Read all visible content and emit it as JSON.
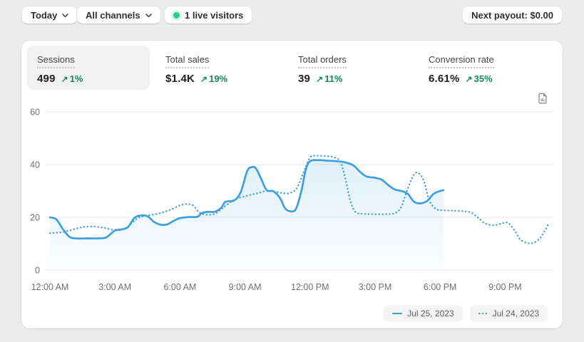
{
  "topbar": {
    "date_selector": {
      "label": "Today"
    },
    "channel_selector": {
      "label": "All channels"
    },
    "live_visitors": {
      "label": "1 live visitors"
    },
    "next_payout": {
      "label": "Next payout: $0.00"
    }
  },
  "icons": {
    "trend_up": "↗"
  },
  "colors": {
    "accent_blue": "#3da0da",
    "success_green": "#17875e",
    "live_dot_green": "#2fcf8b",
    "page_background": "#ececec",
    "card_background": "#ffffff"
  },
  "metrics": [
    {
      "label": "Sessions",
      "value": "499",
      "trend": "1%",
      "selected": true
    },
    {
      "label": "Total sales",
      "value": "$1.4K",
      "trend": "19%",
      "selected": false
    },
    {
      "label": "Total orders",
      "value": "39",
      "trend": "11%",
      "selected": false
    },
    {
      "label": "Conversion rate",
      "value": "6.61%",
      "trend": "35%",
      "selected": false
    }
  ],
  "legend": [
    {
      "label": "Jul 25, 2023",
      "style": "solid"
    },
    {
      "label": "Jul 24, 2023",
      "style": "dotted"
    }
  ],
  "chart_data": {
    "type": "line",
    "ylim": [
      0,
      60
    ],
    "xlim_hours": [
      0,
      23
    ],
    "grid": "horizontal-only",
    "legend_position": "bottom-right",
    "y_ticks": [
      0,
      20,
      40,
      60
    ],
    "x_ticks": [
      {
        "t": 0,
        "label": "12:00 AM"
      },
      {
        "t": 3,
        "label": "3:00 AM"
      },
      {
        "t": 6,
        "label": "6:00 AM"
      },
      {
        "t": 9,
        "label": "9:00 AM"
      },
      {
        "t": 12,
        "label": "12:00 PM"
      },
      {
        "t": 15,
        "label": "3:00 PM"
      },
      {
        "t": 18,
        "label": "6:00 PM"
      },
      {
        "t": 21,
        "label": "9:00 PM"
      }
    ],
    "series": [
      {
        "name": "Jul 25, 2023",
        "key": "jul-25-2023",
        "style": "solid",
        "color": "#3da0da",
        "area": true,
        "points_hour_value": [
          [
            0,
            20
          ],
          [
            0.3,
            19.2
          ],
          [
            0.6,
            15.5
          ],
          [
            0.9,
            12.6
          ],
          [
            1.2,
            12
          ],
          [
            1.7,
            12
          ],
          [
            2.2,
            12
          ],
          [
            2.6,
            12.4
          ],
          [
            3.0,
            15
          ],
          [
            3.3,
            15.4
          ],
          [
            3.6,
            16.3
          ],
          [
            3.9,
            19.8
          ],
          [
            4.2,
            20.7
          ],
          [
            4.5,
            20.4
          ],
          [
            4.8,
            18.3
          ],
          [
            5.1,
            17.2
          ],
          [
            5.4,
            17.3
          ],
          [
            5.7,
            18.6
          ],
          [
            6.0,
            19.7
          ],
          [
            6.4,
            20.1
          ],
          [
            6.8,
            20.2
          ],
          [
            7.0,
            21.6
          ],
          [
            7.3,
            22.1
          ],
          [
            7.6,
            22.1
          ],
          [
            7.9,
            23.6
          ],
          [
            8.1,
            25.9
          ],
          [
            8.5,
            26.4
          ],
          [
            8.8,
            29.5
          ],
          [
            9.1,
            37.5
          ],
          [
            9.3,
            39
          ],
          [
            9.5,
            38.6
          ],
          [
            9.75,
            34.5
          ],
          [
            10.0,
            30.3
          ],
          [
            10.3,
            29.9
          ],
          [
            10.6,
            27.5
          ],
          [
            10.85,
            23.4
          ],
          [
            11.1,
            22.3
          ],
          [
            11.35,
            23.2
          ],
          [
            11.6,
            30
          ],
          [
            11.8,
            38
          ],
          [
            12.0,
            41.3
          ],
          [
            12.4,
            41.7
          ],
          [
            12.8,
            41.5
          ],
          [
            13.2,
            41.3
          ],
          [
            13.6,
            40.9
          ],
          [
            14.0,
            39.7
          ],
          [
            14.3,
            37.3
          ],
          [
            14.6,
            35.5
          ],
          [
            15.0,
            35
          ],
          [
            15.3,
            34.3
          ],
          [
            15.6,
            32.3
          ],
          [
            15.9,
            30.6
          ],
          [
            16.2,
            30
          ],
          [
            16.5,
            29
          ],
          [
            16.8,
            25.9
          ],
          [
            17.1,
            25.3
          ],
          [
            17.4,
            26.2
          ],
          [
            17.7,
            28.9
          ],
          [
            18.0,
            30
          ],
          [
            18.15,
            30.3
          ]
        ]
      },
      {
        "name": "Jul 24, 2023",
        "key": "jul-24-2023",
        "style": "dotted",
        "color": "#3da0da",
        "area": false,
        "points_hour_value": [
          [
            0,
            14
          ],
          [
            0.5,
            14.3
          ],
          [
            1.0,
            15.2
          ],
          [
            1.5,
            16.3
          ],
          [
            2.0,
            16.5
          ],
          [
            2.5,
            16
          ],
          [
            3.0,
            15.2
          ],
          [
            3.5,
            15.9
          ],
          [
            3.8,
            18
          ],
          [
            4.1,
            19.9
          ],
          [
            4.5,
            20.7
          ],
          [
            5.0,
            21.4
          ],
          [
            5.5,
            22.7
          ],
          [
            6.0,
            24.5
          ],
          [
            6.3,
            25
          ],
          [
            6.6,
            24.5
          ],
          [
            6.9,
            21.8
          ],
          [
            7.2,
            21
          ],
          [
            7.6,
            21.3
          ],
          [
            8.0,
            23.7
          ],
          [
            8.5,
            26.6
          ],
          [
            9.0,
            28
          ],
          [
            9.5,
            29
          ],
          [
            10.0,
            30
          ],
          [
            10.4,
            29.7
          ],
          [
            10.8,
            29.1
          ],
          [
            11.1,
            29.3
          ],
          [
            11.4,
            31.2
          ],
          [
            11.7,
            37
          ],
          [
            12.0,
            42.7
          ],
          [
            12.3,
            43.3
          ],
          [
            12.7,
            43.2
          ],
          [
            13.1,
            42.8
          ],
          [
            13.4,
            41
          ],
          [
            13.65,
            34
          ],
          [
            13.85,
            26.5
          ],
          [
            14.1,
            22
          ],
          [
            14.5,
            21.3
          ],
          [
            15.0,
            21.2
          ],
          [
            15.5,
            21.2
          ],
          [
            15.9,
            21.5
          ],
          [
            16.2,
            23.8
          ],
          [
            16.5,
            30.8
          ],
          [
            16.8,
            36.2
          ],
          [
            17.0,
            36.8
          ],
          [
            17.25,
            33.8
          ],
          [
            17.5,
            26.5
          ],
          [
            17.8,
            23.2
          ],
          [
            18.1,
            22.7
          ],
          [
            18.6,
            22.5
          ],
          [
            19.1,
            22.3
          ],
          [
            19.45,
            21.7
          ],
          [
            19.75,
            19.8
          ],
          [
            20.1,
            17.6
          ],
          [
            20.5,
            17
          ],
          [
            20.9,
            17.8
          ],
          [
            21.15,
            17.8
          ],
          [
            21.45,
            14.8
          ],
          [
            21.7,
            11.6
          ],
          [
            22.0,
            10.3
          ],
          [
            22.3,
            10.3
          ],
          [
            22.6,
            12
          ],
          [
            22.8,
            14.5
          ],
          [
            23.0,
            17.6
          ]
        ]
      }
    ]
  }
}
